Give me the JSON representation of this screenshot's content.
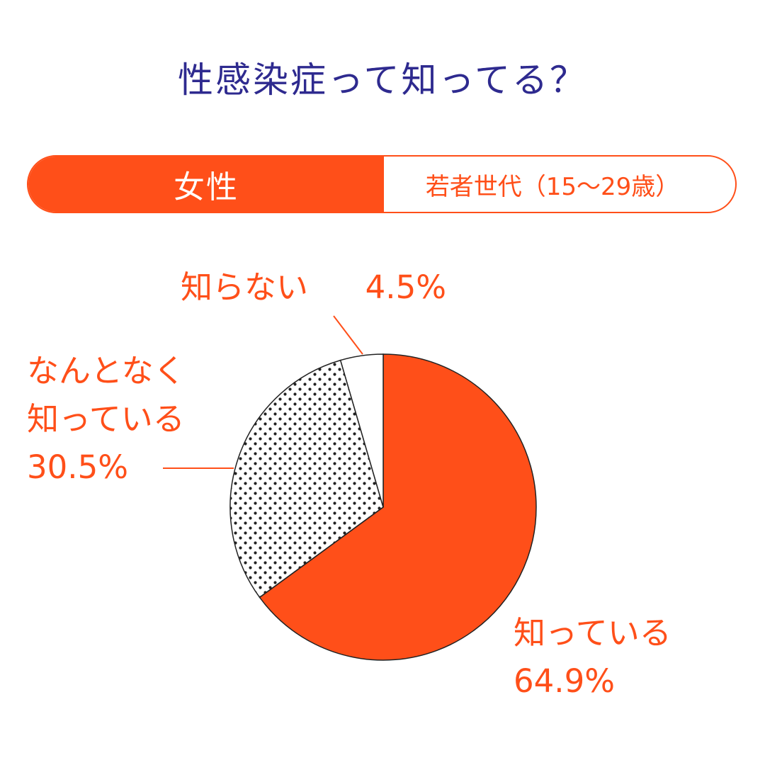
{
  "header": {
    "title": "性感染症って知ってる？"
  },
  "filter": {
    "gender": "女性",
    "age_group": "若者世代（15〜29歳）"
  },
  "colors": {
    "accent": "#ff4f19",
    "title": "#2e2a8f",
    "dot": "#222222"
  },
  "chart_data": {
    "type": "pie",
    "title": "性感染症って知ってる？",
    "slices": [
      {
        "label": "知っている",
        "value": 64.9,
        "value_label": "64.9%",
        "fill": "solid"
      },
      {
        "label": "なんとなく知っている",
        "label_lines": [
          "なんとなく",
          "知っている"
        ],
        "value": 30.5,
        "value_label": "30.5%",
        "fill": "dots"
      },
      {
        "label": "知らない",
        "value": 4.5,
        "value_label": "4.5%",
        "fill": "white"
      }
    ],
    "start": "12 o'clock",
    "direction": "clockwise"
  }
}
